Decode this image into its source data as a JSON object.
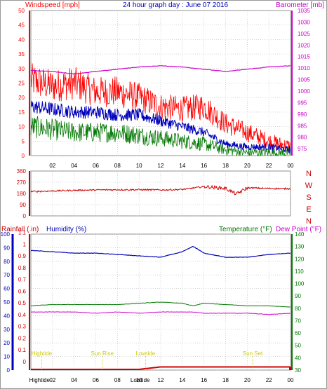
{
  "header": {
    "left_title": "Windspeed [mph]",
    "center_title": "24 hour graph day : June 07 2016",
    "right_title": "Barometer [mb]"
  },
  "colors": {
    "gust": "#ff0000",
    "avg": "#0000bb",
    "low": "#007700",
    "baro": "#cc00cc",
    "direction": "#cc0000",
    "humidity": "#0000bb",
    "temperature": "#007700",
    "dewpoint": "#cc00cc",
    "rain": "#cc0000",
    "tide": "#cccc00",
    "background": "#ffffff",
    "grid": "#bbbbbb"
  },
  "chart_data": [
    {
      "type": "line",
      "title": "24 hour graph day : June 07 2016",
      "ylabel": "Windspeed [mph]",
      "y2label": "Barometer [mb]",
      "x_tick_labels": [
        "02",
        "04",
        "06",
        "08",
        "10",
        "12",
        "14",
        "16",
        "18",
        "20",
        "22",
        "00"
      ],
      "x": [
        0,
        2,
        4,
        6,
        8,
        10,
        12,
        14,
        16,
        18,
        20,
        22,
        24
      ],
      "ylim": [
        0,
        50
      ],
      "y_ticks": [
        0,
        5,
        10,
        15,
        20,
        25,
        30,
        35,
        40,
        45,
        50
      ],
      "y2lim": [
        972,
        1035
      ],
      "y2_ticks": [
        975,
        980,
        985,
        990,
        995,
        1000,
        1005,
        1010,
        1015,
        1020,
        1025,
        1030,
        1035
      ],
      "grid": true,
      "series": [
        {
          "name": "Windspeed",
          "values": [
            26,
            24,
            25,
            22,
            22,
            20,
            17,
            16,
            17,
            11,
            8,
            5,
            3
          ]
        },
        {
          "name": "",
          "values": [
            17,
            16,
            15,
            15,
            14,
            14,
            12,
            10,
            8,
            4,
            3,
            3,
            2
          ]
        },
        {
          "name": "",
          "values": [
            10,
            9,
            8,
            8,
            8,
            7,
            6,
            5,
            4,
            2,
            1,
            1,
            1
          ]
        },
        {
          "name": "Barometer",
          "values": [
            1009,
            1008.5,
            1007.5,
            1008.5,
            1009.5,
            1010.5,
            1011,
            1010.5,
            1009.5,
            1008.5,
            1009.5,
            1010.5,
            1011
          ]
        }
      ]
    },
    {
      "type": "line",
      "ylabel_letters": [
        "N",
        "W",
        "S",
        "E",
        "N"
      ],
      "x": [
        0,
        2,
        4,
        6,
        8,
        10,
        12,
        14,
        16,
        18,
        19,
        20,
        22,
        24
      ],
      "ylim": [
        0,
        360
      ],
      "y_ticks": [
        0,
        90,
        180,
        270,
        360
      ],
      "grid": true,
      "series": [
        {
          "name": "",
          "values": [
            195,
            200,
            205,
            208,
            210,
            210,
            208,
            212,
            235,
            220,
            175,
            225,
            220,
            218
          ]
        }
      ]
    },
    {
      "type": "line",
      "left_label": "Rainfall (.in)",
      "second_label": "Humidity (%)",
      "temp_label": "Temperature (°F)",
      "dew_label": "Dew Point (°F)",
      "x_tick_labels": [
        "02",
        "04",
        "06",
        "08",
        "10",
        "12",
        "14",
        "16",
        "18",
        "20",
        "22",
        "00"
      ],
      "x": [
        0,
        2,
        4,
        6,
        8,
        10,
        12,
        14,
        15,
        16,
        18,
        20,
        22,
        24
      ],
      "hum_ticks": [
        0,
        10,
        20,
        30,
        40,
        50,
        60,
        70,
        80,
        90,
        100
      ],
      "rain_ticks": [
        "0",
        "0.1",
        "0.2",
        "0.3",
        "0.4",
        "0.5",
        "0.6",
        "0.7",
        "0.8",
        "0.9",
        "1",
        "1.1"
      ],
      "temp_ticks": [
        30,
        40,
        50,
        60,
        70,
        80,
        90,
        100,
        110,
        120,
        130,
        140
      ],
      "ylim_humidity": [
        0,
        100
      ],
      "ylim_temperature": [
        30,
        140
      ],
      "grid": true,
      "series": [
        {
          "name": "Humidity",
          "values": [
            88,
            87,
            86,
            86,
            85,
            84,
            83,
            87,
            91,
            86,
            83,
            83,
            85,
            86
          ]
        },
        {
          "name": "Temperature",
          "values": [
            82,
            83,
            83,
            83,
            83,
            84,
            85,
            84,
            82,
            84,
            83,
            82,
            82,
            81
          ]
        },
        {
          "name": "Dew Point",
          "values": [
            77,
            77,
            77,
            76,
            77,
            76,
            77,
            77,
            77,
            76,
            76,
            76,
            75,
            76
          ]
        },
        {
          "name": "Rainfall",
          "values": [
            0,
            0,
            0,
            0,
            0,
            0,
            0.02,
            0.02,
            0.02,
            0.02,
            0.02,
            0.02,
            0.02,
            0.02
          ]
        }
      ],
      "annotations": [
        {
          "text": "Hightide",
          "x": 1.0
        },
        {
          "text": "Sun Rise",
          "x": 6.6
        },
        {
          "text": "Lowtide",
          "x": 10.6
        },
        {
          "text": "Sun Set",
          "x": 20.5
        }
      ],
      "bottom_labels": [
        {
          "text": "Hightide",
          "x": 0.8
        },
        {
          "text": "Lowtide",
          "x": 10.1
        }
      ]
    }
  ]
}
